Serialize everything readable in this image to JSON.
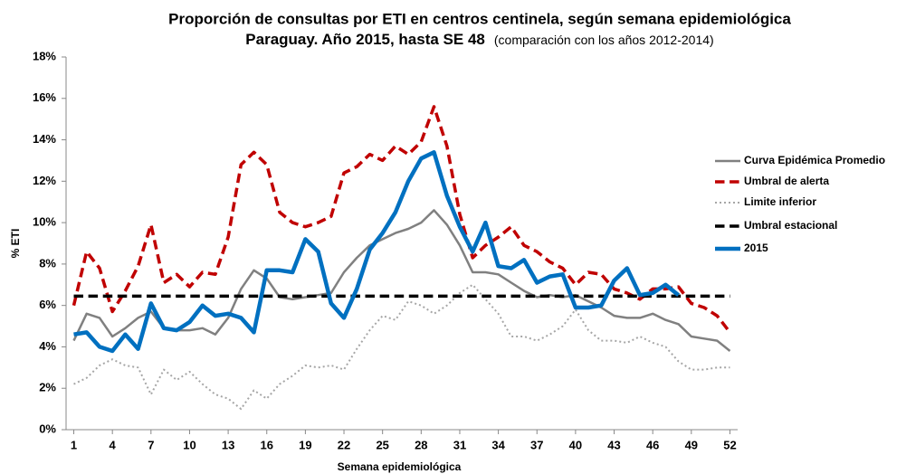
{
  "chart_data": {
    "type": "line",
    "title": "Proporción de consultas por ETI en centros centinela, según semana epidemiológica",
    "subtitle": "Paraguay. Año 2015, hasta SE 48",
    "note": "(comparación con los años 2012-2014)",
    "x_label": "Semana epidemiológica",
    "y_label": "% ETI",
    "x": [
      1,
      2,
      3,
      4,
      5,
      6,
      7,
      8,
      9,
      10,
      11,
      12,
      13,
      14,
      15,
      16,
      17,
      18,
      19,
      20,
      21,
      22,
      23,
      24,
      25,
      26,
      27,
      28,
      29,
      30,
      31,
      32,
      33,
      34,
      35,
      36,
      37,
      38,
      39,
      40,
      41,
      42,
      43,
      44,
      45,
      46,
      47,
      48,
      49,
      50,
      51,
      52
    ],
    "xlim": [
      0.4,
      52.6
    ],
    "xticks": [
      1,
      4,
      7,
      10,
      13,
      16,
      19,
      22,
      25,
      28,
      31,
      34,
      37,
      40,
      43,
      46,
      49,
      52
    ],
    "ylim": [
      0,
      18
    ],
    "yticks": [
      {
        "value": 0,
        "label": "0%"
      },
      {
        "value": 2,
        "label": "2%"
      },
      {
        "value": 4,
        "label": "4%"
      },
      {
        "value": 6,
        "label": "6%"
      },
      {
        "value": 8,
        "label": "8%"
      },
      {
        "value": 10,
        "label": "10%"
      },
      {
        "value": 12,
        "label": "12%"
      },
      {
        "value": 14,
        "label": "14%"
      },
      {
        "value": 16,
        "label": "16%"
      },
      {
        "value": 18,
        "label": "18%"
      }
    ],
    "grid": false,
    "legend": "right",
    "series": [
      {
        "name": "Curva Epidémica Promedio",
        "color": "#808080",
        "style": "solid",
        "width": 2.5,
        "values": [
          4.3,
          5.6,
          5.4,
          4.5,
          4.9,
          5.4,
          5.7,
          4.9,
          4.8,
          4.8,
          4.9,
          4.6,
          5.4,
          6.8,
          7.7,
          7.3,
          6.4,
          6.3,
          6.4,
          6.5,
          6.6,
          7.6,
          8.3,
          8.9,
          9.2,
          9.5,
          9.7,
          10.0,
          10.6,
          9.9,
          8.9,
          7.6,
          7.6,
          7.5,
          7.1,
          6.7,
          6.4,
          6.5,
          6.4,
          6.5,
          6.2,
          5.9,
          5.5,
          5.4,
          5.4,
          5.6,
          5.3,
          5.1,
          4.5,
          4.4,
          4.3,
          3.8
        ]
      },
      {
        "name": "Umbral de alerta",
        "color": "#c00000",
        "style": "dashed",
        "width": 3.5,
        "values": [
          6.0,
          8.6,
          7.8,
          5.7,
          6.7,
          7.9,
          9.9,
          7.1,
          7.5,
          6.9,
          7.6,
          7.5,
          9.3,
          12.8,
          13.4,
          12.8,
          10.5,
          10.0,
          9.8,
          10.0,
          10.3,
          12.4,
          12.7,
          13.3,
          13.0,
          13.7,
          13.3,
          13.9,
          15.6,
          13.7,
          10.4,
          8.3,
          8.9,
          9.3,
          9.8,
          8.9,
          8.6,
          8.1,
          7.8,
          7.0,
          7.6,
          7.5,
          6.8,
          6.6,
          6.3,
          6.8,
          6.8,
          6.9,
          6.1,
          5.9,
          5.5,
          4.7
        ]
      },
      {
        "name": "Limite inferior",
        "color": "#a6a6a6",
        "style": "dotted",
        "width": 2,
        "values": [
          2.2,
          2.5,
          3.1,
          3.4,
          3.1,
          3.0,
          1.7,
          2.9,
          2.4,
          2.8,
          2.2,
          1.7,
          1.5,
          1.0,
          1.9,
          1.5,
          2.2,
          2.6,
          3.1,
          3.0,
          3.1,
          2.9,
          3.9,
          4.8,
          5.5,
          5.3,
          6.2,
          6.0,
          5.6,
          6.0,
          6.6,
          7.0,
          6.3,
          5.6,
          4.5,
          4.5,
          4.3,
          4.6,
          5.0,
          5.8,
          4.8,
          4.3,
          4.3,
          4.2,
          4.5,
          4.2,
          4.0,
          3.3,
          2.9,
          2.9,
          3.0,
          3.0
        ]
      },
      {
        "name": "Umbral estacional",
        "color": "#000000",
        "style": "dashed",
        "width": 3.5,
        "values": [
          6.45,
          6.45,
          6.45,
          6.45,
          6.45,
          6.45,
          6.45,
          6.45,
          6.45,
          6.45,
          6.45,
          6.45,
          6.45,
          6.45,
          6.45,
          6.45,
          6.45,
          6.45,
          6.45,
          6.45,
          6.45,
          6.45,
          6.45,
          6.45,
          6.45,
          6.45,
          6.45,
          6.45,
          6.45,
          6.45,
          6.45,
          6.45,
          6.45,
          6.45,
          6.45,
          6.45,
          6.45,
          6.45,
          6.45,
          6.45,
          6.45,
          6.45,
          6.45,
          6.45,
          6.45,
          6.45,
          6.45,
          6.45,
          6.45,
          6.45,
          6.45,
          6.45
        ]
      },
      {
        "name": "2015",
        "color": "#0070c0",
        "style": "solid",
        "width": 4.5,
        "values": [
          4.6,
          4.7,
          4.0,
          3.8,
          4.6,
          3.9,
          6.1,
          4.9,
          4.8,
          5.2,
          6.0,
          5.5,
          5.6,
          5.4,
          4.7,
          7.7,
          7.7,
          7.6,
          9.2,
          8.6,
          6.1,
          5.4,
          6.8,
          8.7,
          9.5,
          10.5,
          12.0,
          13.1,
          13.4,
          11.3,
          9.8,
          8.6,
          10.0,
          7.9,
          7.8,
          8.2,
          7.1,
          7.4,
          7.5,
          5.9,
          5.9,
          6.0,
          7.2,
          7.8,
          6.5,
          6.6,
          7.0,
          6.5,
          null,
          null,
          null,
          null
        ]
      }
    ]
  }
}
